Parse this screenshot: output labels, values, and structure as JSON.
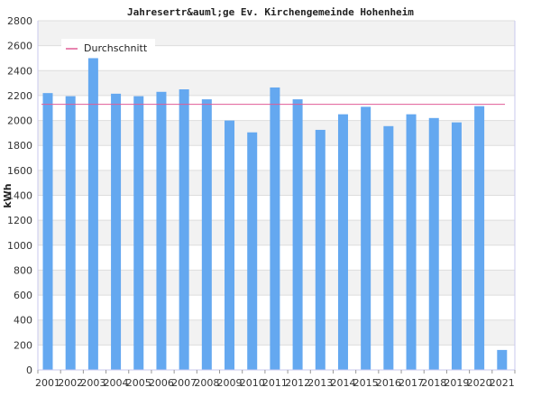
{
  "chart_data": {
    "type": "bar",
    "title": "Jahresertr&auml;ge Ev. Kirchengemeinde Hohenheim",
    "ylabel": "kWh",
    "xlabel": "",
    "ylim": [
      0,
      2800
    ],
    "y_ticks": [
      0,
      200,
      400,
      600,
      800,
      1000,
      1200,
      1400,
      1600,
      1800,
      2000,
      2200,
      2400,
      2600,
      2800
    ],
    "categories": [
      "2001",
      "2002",
      "2003",
      "2004",
      "2005",
      "2006",
      "2007",
      "2008",
      "2009",
      "2010",
      "2011",
      "2012",
      "2013",
      "2014",
      "2015",
      "2016",
      "2017",
      "2018",
      "2019",
      "2020",
      "2021"
    ],
    "values": [
      2220,
      2195,
      2500,
      2215,
      2195,
      2230,
      2250,
      2170,
      2000,
      1905,
      2265,
      2170,
      1925,
      2050,
      2110,
      1955,
      2050,
      2020,
      1985,
      2115,
      160
    ],
    "average": {
      "label": "Durchschnitt",
      "value": 2130
    },
    "legend_position": "top-left",
    "grid": "horizontal-bands",
    "colors": {
      "bar": "#64a8f0",
      "average_line": "#e05c96",
      "band": "#f2f2f2",
      "grid": "#dddddd",
      "axis": "#c8c8ee"
    }
  }
}
